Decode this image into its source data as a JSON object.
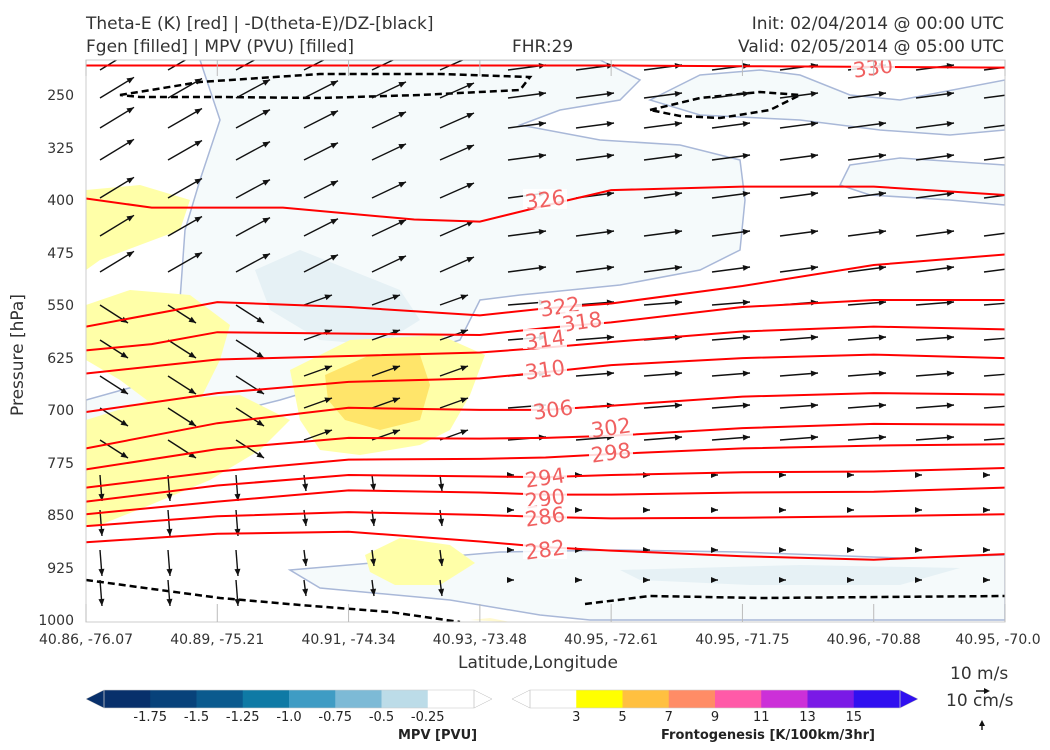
{
  "header": {
    "title_line1": "Theta-E (K) [red] | -D(theta-E)/DZ-[black]",
    "title_line2": "Fgen [filled] | MPV (PVU) [filled]",
    "fhr": "FHR:29",
    "init": "Init: 02/04/2014 @ 00:00 UTC",
    "valid": "Valid: 02/05/2014 @ 05:00 UTC"
  },
  "chart_data": {
    "type": "cross-section",
    "xlabel": "Latitude,Longitude",
    "ylabel": "Pressure [hPa]",
    "x_ticks": [
      "40.86, -76.07",
      "40.89, -75.21",
      "40.91, -74.34",
      "40.93, -73.48",
      "40.95, -72.61",
      "40.95, -71.75",
      "40.96, -70.88",
      "40.95, -70.0"
    ],
    "y_ticks": [
      "250",
      "325",
      "400",
      "475",
      "550",
      "625",
      "700",
      "775",
      "850",
      "925",
      "1000"
    ],
    "ylim": [
      1000,
      200
    ],
    "theta_e_contours": [
      {
        "label": "330",
        "points": [
          [
            0,
            205
          ],
          [
            2,
            205
          ],
          [
            4,
            205
          ],
          [
            5,
            206
          ],
          [
            6,
            207
          ],
          [
            7,
            208
          ]
        ]
      },
      {
        "label": "326",
        "points": [
          [
            0,
            395
          ],
          [
            0.5,
            408
          ],
          [
            1.5,
            408
          ],
          [
            2.5,
            425
          ],
          [
            3,
            428
          ],
          [
            3.5,
            405
          ],
          [
            4,
            383
          ],
          [
            5,
            378
          ],
          [
            6,
            378
          ],
          [
            7,
            390
          ]
        ]
      },
      {
        "label": "322",
        "points": [
          [
            0,
            578
          ],
          [
            1,
            543
          ],
          [
            2,
            550
          ],
          [
            3,
            562
          ],
          [
            3.5,
            552
          ],
          [
            4,
            545
          ],
          [
            5,
            520
          ],
          [
            6,
            490
          ],
          [
            7,
            475
          ]
        ]
      },
      {
        "label": "318",
        "points": [
          [
            0,
            612
          ],
          [
            0.5,
            603
          ],
          [
            1,
            586
          ],
          [
            2,
            588
          ],
          [
            3,
            590
          ],
          [
            3.5,
            580
          ],
          [
            4,
            572
          ],
          [
            5,
            550
          ],
          [
            6,
            540
          ],
          [
            7,
            540
          ]
        ]
      },
      {
        "label": "314",
        "points": [
          [
            0,
            645
          ],
          [
            1,
            625
          ],
          [
            2,
            620
          ],
          [
            3,
            615
          ],
          [
            3.5,
            608
          ],
          [
            4,
            600
          ],
          [
            5,
            585
          ],
          [
            6,
            578
          ],
          [
            7,
            582
          ]
        ]
      },
      {
        "label": "310",
        "points": [
          [
            0,
            700
          ],
          [
            1,
            673
          ],
          [
            2,
            657
          ],
          [
            3,
            652
          ],
          [
            3.5,
            643
          ],
          [
            4,
            633
          ],
          [
            5,
            623
          ],
          [
            6,
            618
          ],
          [
            7,
            623
          ]
        ]
      },
      {
        "label": "306",
        "points": [
          [
            0,
            752
          ],
          [
            1,
            716
          ],
          [
            2,
            694
          ],
          [
            3,
            697
          ],
          [
            3.5,
            697
          ],
          [
            4,
            691
          ],
          [
            5,
            678
          ],
          [
            6,
            673
          ],
          [
            7,
            675
          ]
        ]
      },
      {
        "label": "302",
        "points": [
          [
            0,
            782
          ],
          [
            1,
            753
          ],
          [
            2,
            737
          ],
          [
            3,
            738
          ],
          [
            3.5,
            737
          ],
          [
            4,
            734
          ],
          [
            5,
            723
          ],
          [
            6,
            717
          ],
          [
            7,
            718
          ]
        ]
      },
      {
        "label": "298",
        "points": [
          [
            0,
            808
          ],
          [
            1,
            785
          ],
          [
            2,
            768
          ],
          [
            3,
            767
          ],
          [
            3.5,
            765
          ],
          [
            4,
            760
          ],
          [
            5,
            752
          ],
          [
            6,
            748
          ],
          [
            7,
            746
          ]
        ]
      },
      {
        "label": "294",
        "points": [
          [
            0,
            828
          ],
          [
            1,
            805
          ],
          [
            2,
            790
          ],
          [
            3,
            792
          ],
          [
            3.5,
            793
          ],
          [
            4,
            790
          ],
          [
            5,
            786
          ],
          [
            6,
            785
          ],
          [
            7,
            780
          ]
        ]
      },
      {
        "label": "290",
        "points": [
          [
            0,
            846
          ],
          [
            1,
            828
          ],
          [
            2,
            812
          ],
          [
            3,
            815
          ],
          [
            3.5,
            818
          ],
          [
            4,
            818
          ],
          [
            5,
            815
          ],
          [
            6,
            814
          ],
          [
            7,
            808
          ]
        ]
      },
      {
        "label": "286",
        "points": [
          [
            0,
            863
          ],
          [
            1,
            849
          ],
          [
            2,
            843
          ],
          [
            3,
            847
          ],
          [
            3.5,
            850
          ],
          [
            4,
            852
          ],
          [
            5,
            851
          ],
          [
            6,
            849
          ],
          [
            7,
            846
          ]
        ]
      },
      {
        "label": "282",
        "points": [
          [
            0,
            886
          ],
          [
            1,
            874
          ],
          [
            2,
            871
          ],
          [
            3,
            885
          ],
          [
            3.5,
            893
          ],
          [
            4,
            898
          ],
          [
            5,
            906
          ],
          [
            6,
            911
          ],
          [
            7,
            903
          ]
        ]
      }
    ],
    "mpv_colorbar": {
      "title": "MPV [PVU]",
      "labels": [
        "-1.75",
        "-1.5",
        "-1.25",
        "-1.0",
        "-0.75",
        "-0.5",
        "-0.25"
      ],
      "colors": [
        "#08306b",
        "#08427a",
        "#0b5a8e",
        "#0f7aa5",
        "#3f9cc4",
        "#7dbad6",
        "#bcdce8",
        "#ffffff"
      ]
    },
    "fgen_colorbar": {
      "title": "Frontogenesis [K/100km/3hr]",
      "labels": [
        "3",
        "5",
        "7",
        "9",
        "11",
        "13",
        "15"
      ],
      "colors": [
        "#ffffff",
        "#ffff00",
        "#ffc040",
        "#ff8c66",
        "#ff5aa8",
        "#cc30d8",
        "#7a1ae6",
        "#3010f0"
      ]
    },
    "wind_scale": {
      "label_horizontal": "10 m/s",
      "label_vertical": "10 cm/s"
    }
  }
}
